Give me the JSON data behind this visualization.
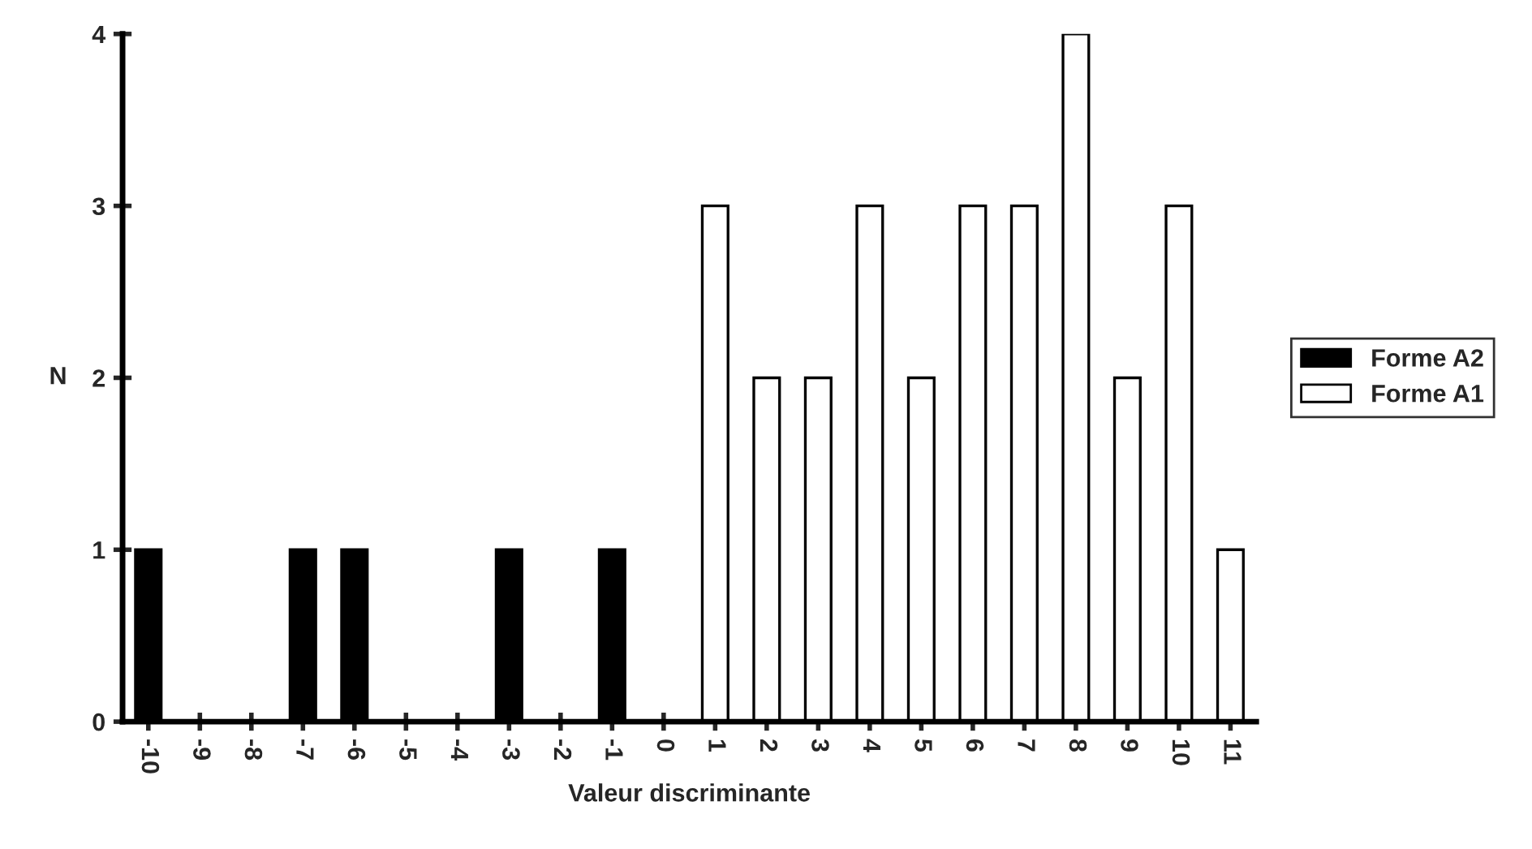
{
  "chart_data": {
    "type": "bar",
    "categories": [
      "-10",
      "-9",
      "-8",
      "-7",
      "-6",
      "-5",
      "-4",
      "-3",
      "-2",
      "-1",
      "0",
      "1",
      "2",
      "3",
      "4",
      "5",
      "6",
      "7",
      "8",
      "9",
      "10",
      "11"
    ],
    "series": [
      {
        "name": "Forme A2",
        "color": "#000000",
        "values": [
          1,
          null,
          null,
          1,
          1,
          null,
          null,
          1,
          null,
          1,
          null,
          null,
          null,
          null,
          null,
          null,
          null,
          null,
          null,
          null,
          null,
          null
        ]
      },
      {
        "name": "Forme A1",
        "color": "#ffffff",
        "values": [
          null,
          null,
          null,
          null,
          null,
          null,
          null,
          null,
          null,
          null,
          null,
          3,
          2,
          2,
          3,
          2,
          3,
          3,
          4,
          2,
          3,
          1
        ]
      }
    ],
    "xlabel": "Valeur discriminante",
    "ylabel": "N",
    "ylim": [
      0,
      4
    ],
    "yticks": [
      0,
      1,
      2,
      3,
      4
    ],
    "legend": "right",
    "grid": false
  }
}
